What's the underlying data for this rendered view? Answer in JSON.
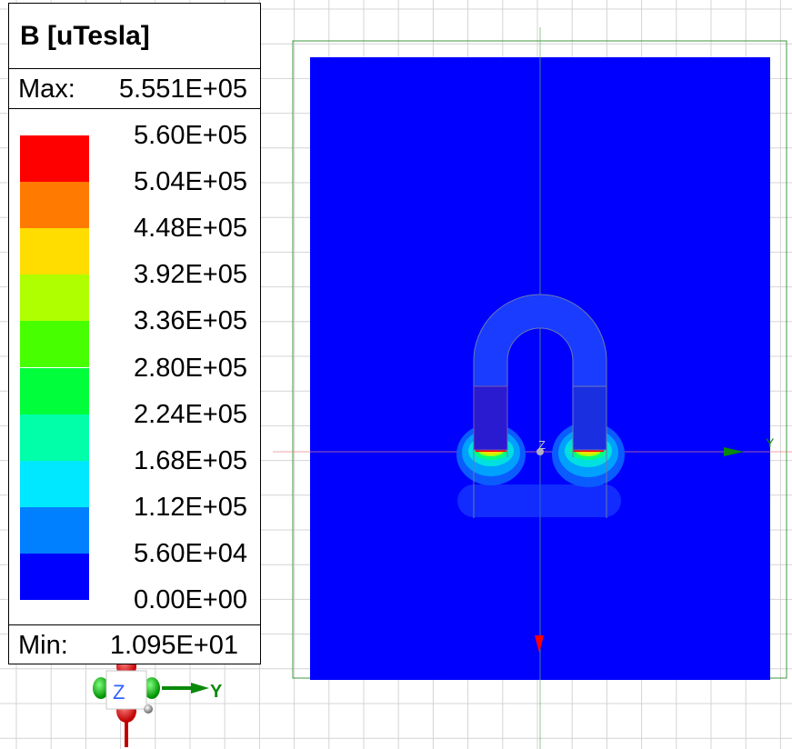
{
  "legend": {
    "title": "B [uTesla]",
    "max_label": "Max:",
    "max_value": "5.551E+05",
    "min_label": "Min:",
    "min_value": "1.095E+01",
    "levels": [
      {
        "value": "5.60E+05",
        "color": "#ff0000"
      },
      {
        "value": "5.04E+05",
        "color": "#ff7a00"
      },
      {
        "value": "4.48E+05",
        "color": "#ffdd00"
      },
      {
        "value": "3.92E+05",
        "color": "#b0ff00"
      },
      {
        "value": "3.36E+05",
        "color": "#48ff00"
      },
      {
        "value": "2.80E+05",
        "color": "#00ff3a"
      },
      {
        "value": "2.24E+05",
        "color": "#00ffa8"
      },
      {
        "value": "1.68E+05",
        "color": "#00e8ff"
      },
      {
        "value": "1.12E+05",
        "color": "#0080ff"
      },
      {
        "value": "5.60E+04",
        "color": "#0000ff"
      },
      {
        "value": "0.00E+00"
      }
    ]
  },
  "axes": {
    "z_label": "Z",
    "y_label": "Y",
    "origin_z_label": "Z",
    "far_y_label": "Y"
  },
  "colors": {
    "field_background": "#0000ff",
    "grid": "#d4d4d4",
    "bounding_box": "#3c9a3c",
    "y_axis": "#0a8a0a",
    "x_axis": "#d40000",
    "z_axis": "#3060ff"
  }
}
